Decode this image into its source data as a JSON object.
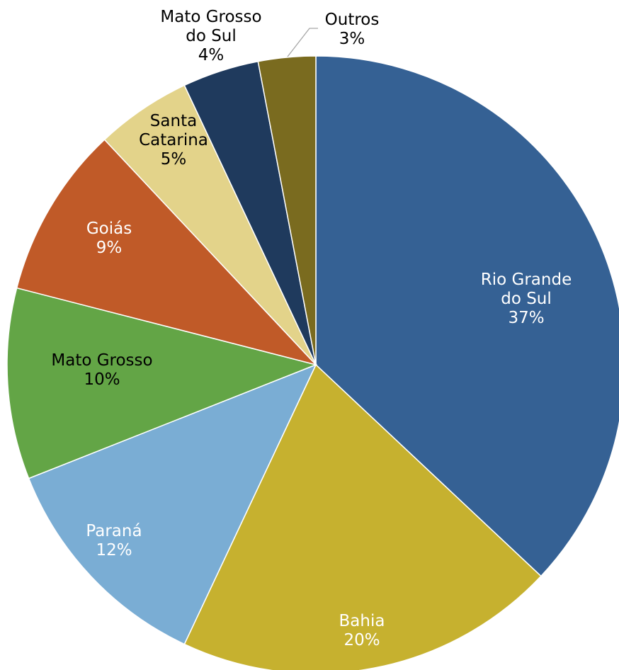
{
  "chart_data": {
    "type": "pie",
    "title": "",
    "start": "12 o'clock",
    "direction": "clockwise",
    "legend": "none",
    "slices": [
      {
        "label": [
          "Rio Grande",
          "do Sul"
        ],
        "pct": "37%",
        "value": 37,
        "color": "#356194",
        "text_color": "#ffffff"
      },
      {
        "label": [
          "Bahia"
        ],
        "pct": "20%",
        "value": 20,
        "color": "#c6b12f",
        "text_color": "#ffffff"
      },
      {
        "label": [
          "Paraná"
        ],
        "pct": "12%",
        "value": 12,
        "color": "#7aadd4",
        "text_color": "#ffffff"
      },
      {
        "label": [
          "Mato Grosso"
        ],
        "pct": "10%",
        "value": 10,
        "color": "#63a546",
        "text_color": "#000000"
      },
      {
        "label": [
          "Goiás"
        ],
        "pct": "9%",
        "value": 9,
        "color": "#c05a28",
        "text_color": "#ffffff"
      },
      {
        "label": [
          "Santa",
          "Catarina"
        ],
        "pct": "5%",
        "value": 5,
        "color": "#e3d38a",
        "text_color": "#000000"
      },
      {
        "label": [
          "Mato Grosso",
          "do Sul"
        ],
        "pct": "4%",
        "value": 4,
        "color": "#1f3a5d",
        "text_color": "#000000"
      },
      {
        "label": [
          "Outros"
        ],
        "pct": "3%",
        "value": 3,
        "color": "#7a6b1f",
        "text_color": "#000000"
      }
    ]
  }
}
